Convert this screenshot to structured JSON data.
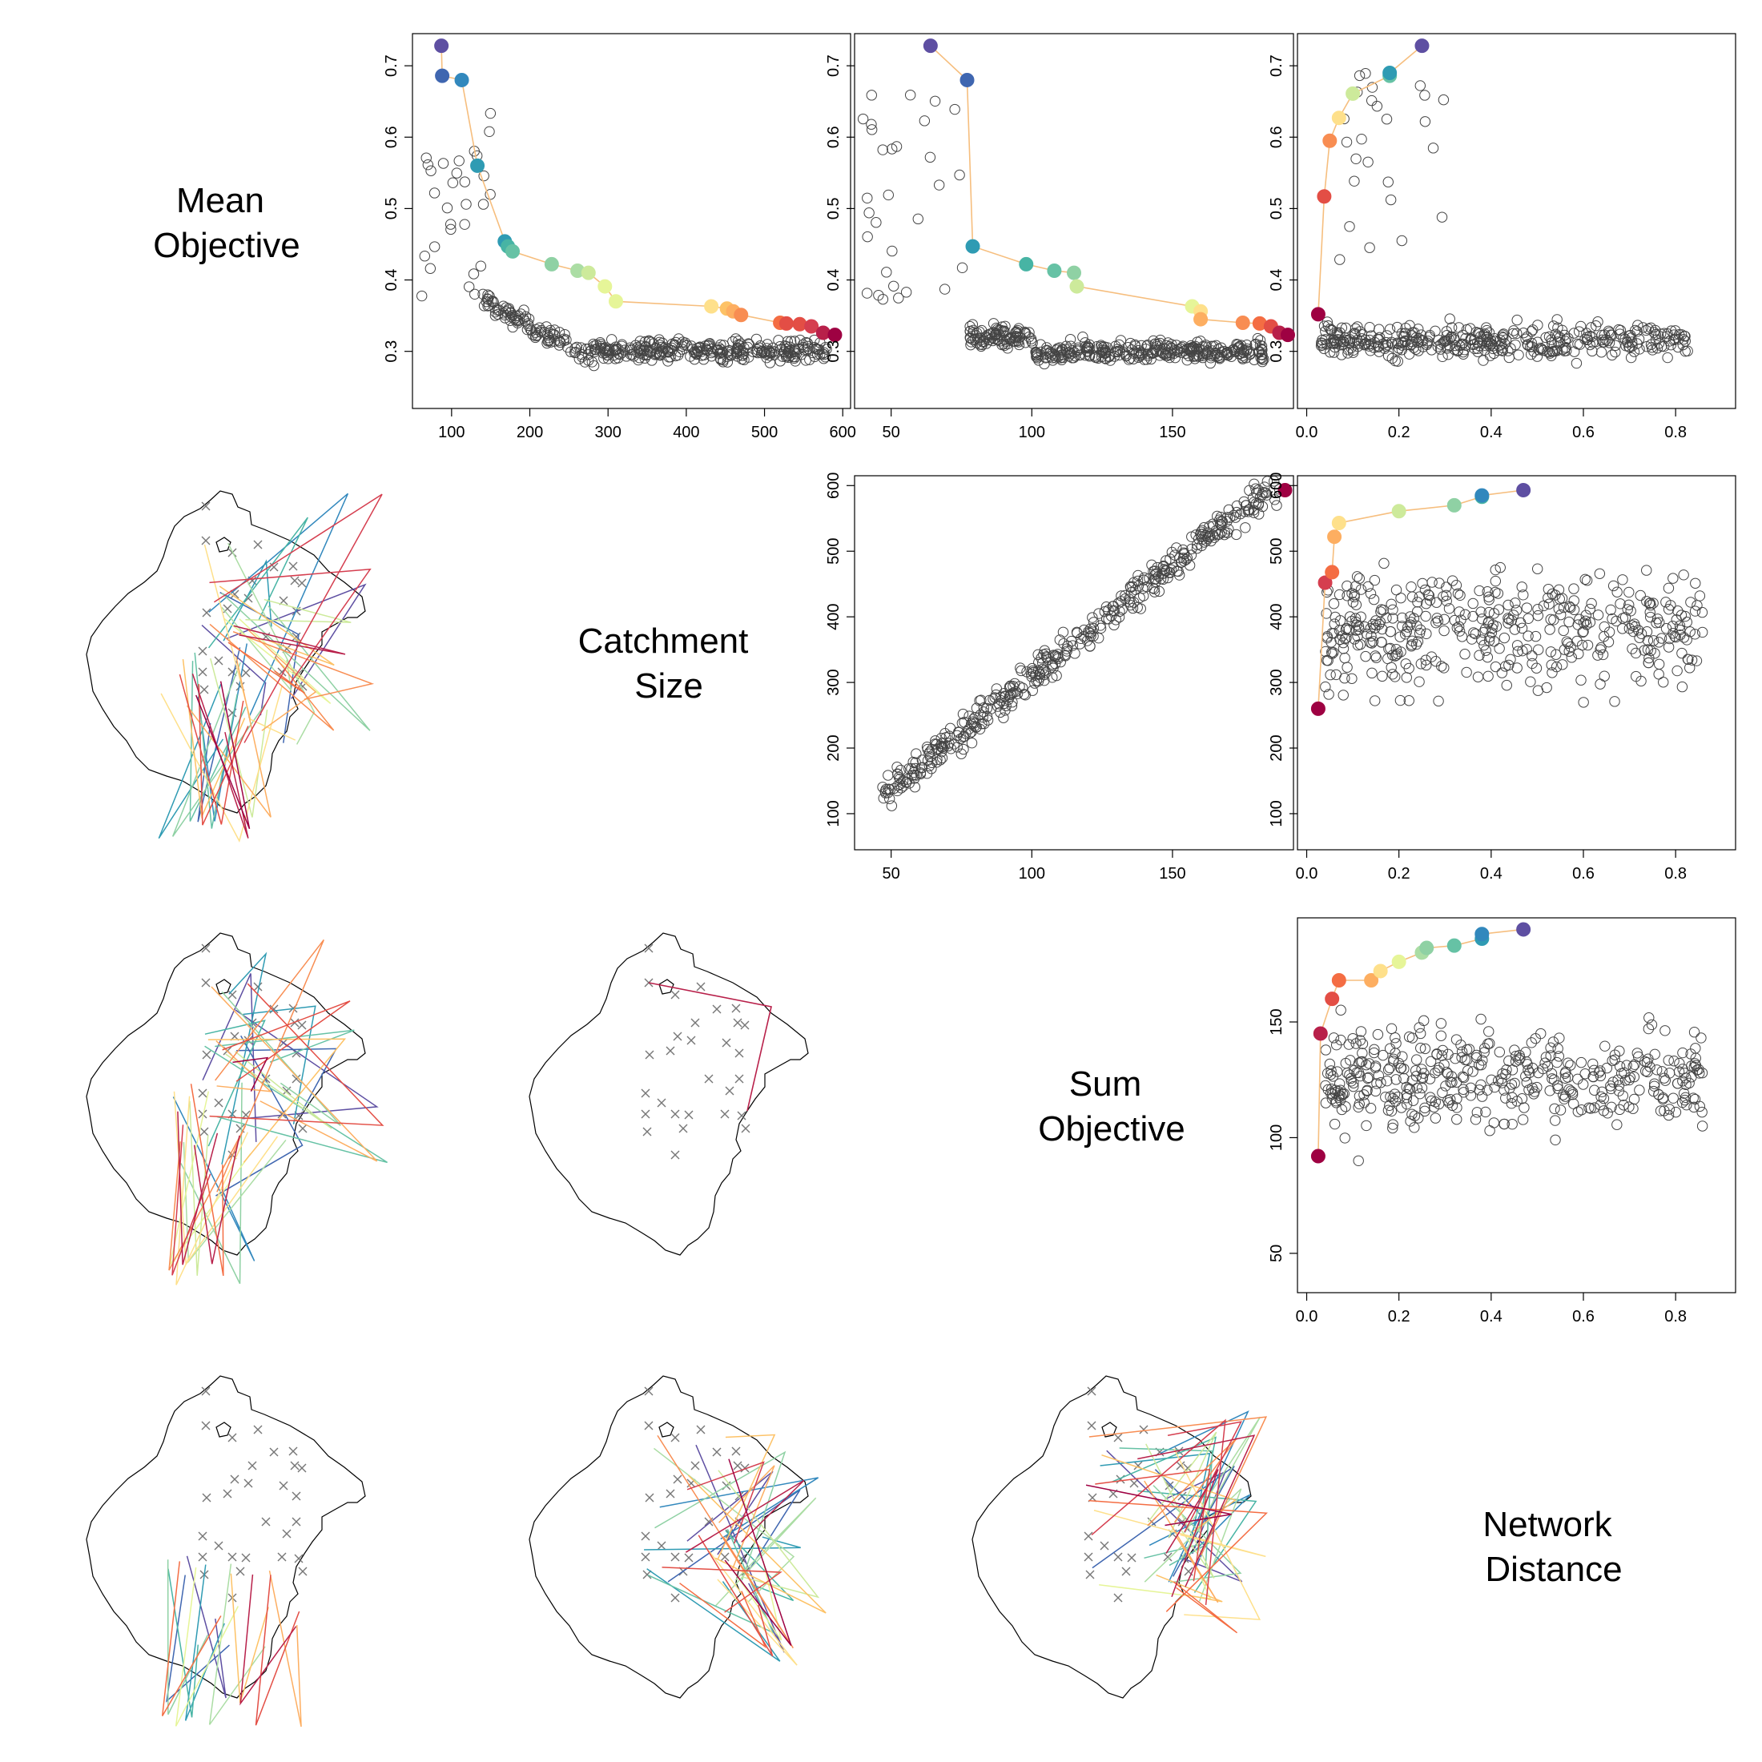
{
  "panel_labels": [
    [
      "Mean",
      "Objective"
    ],
    [
      "Catchment",
      "Size"
    ],
    [
      "Sum",
      "Objective"
    ],
    [
      "Network",
      "Distance"
    ]
  ],
  "palette": [
    "#5e4fa2",
    "#3f66b0",
    "#3288bd",
    "#2f9bb3",
    "#47b4a4",
    "#66c2a5",
    "#8fd1a4",
    "#abdda4",
    "#cdea9b",
    "#e6f598",
    "#fee08b",
    "#fdc266",
    "#fdae61",
    "#f88d52",
    "#f46d43",
    "#e34e45",
    "#d53e4f",
    "#b8204a",
    "#9e0142"
  ],
  "front_line_color": "#f6be7e",
  "chart_data": [
    {
      "id": "mean-vs-catchment",
      "type": "scatter",
      "xlabel": "",
      "ylabel": "",
      "xlim": [
        50,
        610
      ],
      "ylim": [
        0.22,
        0.745
      ],
      "xticks": [
        100,
        200,
        300,
        400,
        500,
        600
      ],
      "yticks": [
        0.3,
        0.4,
        0.5,
        0.6,
        0.7
      ],
      "grid": false,
      "pareto_front": [
        [
          87,
          0.728
        ],
        [
          88,
          0.686
        ],
        [
          113,
          0.68
        ],
        [
          133,
          0.56
        ],
        [
          168,
          0.454
        ],
        [
          172,
          0.447
        ],
        [
          178,
          0.44
        ],
        [
          228,
          0.422
        ],
        [
          261,
          0.413
        ],
        [
          275,
          0.41
        ],
        [
          296,
          0.391
        ],
        [
          310,
          0.37
        ],
        [
          432,
          0.363
        ],
        [
          452,
          0.36
        ],
        [
          460,
          0.356
        ],
        [
          470,
          0.351
        ],
        [
          520,
          0.34
        ],
        [
          528,
          0.339
        ],
        [
          545,
          0.338
        ],
        [
          560,
          0.335
        ],
        [
          575,
          0.326
        ],
        [
          590,
          0.323
        ]
      ],
      "cloud_seed": 11,
      "cloud_count": 420
    },
    {
      "id": "mean-vs-sum",
      "type": "scatter",
      "xlabel": "",
      "ylabel": "",
      "xlim": [
        37,
        193
      ],
      "ylim": [
        0.22,
        0.745
      ],
      "xticks": [
        50,
        100,
        150
      ],
      "yticks": [
        0.3,
        0.4,
        0.5,
        0.6,
        0.7
      ],
      "grid": false,
      "pareto_front": [
        [
          64,
          0.728
        ],
        [
          77,
          0.68
        ],
        [
          79,
          0.447
        ],
        [
          98,
          0.422
        ],
        [
          108,
          0.413
        ],
        [
          115,
          0.41
        ],
        [
          116,
          0.391
        ],
        [
          157,
          0.363
        ],
        [
          160,
          0.356
        ],
        [
          160,
          0.345
        ],
        [
          175,
          0.34
        ],
        [
          181,
          0.339
        ],
        [
          185,
          0.335
        ],
        [
          188,
          0.326
        ],
        [
          191,
          0.323
        ]
      ],
      "cloud_seed": 23,
      "cloud_count": 420
    },
    {
      "id": "mean-vs-network",
      "type": "scatter",
      "xlabel": "",
      "ylabel": "",
      "xlim": [
        -0.02,
        0.93
      ],
      "ylim": [
        0.22,
        0.745
      ],
      "xticks": [
        0.0,
        0.2,
        0.4,
        0.6,
        0.8
      ],
      "yticks": [
        0.3,
        0.4,
        0.5,
        0.6,
        0.7
      ],
      "grid": false,
      "pareto_front": [
        [
          0.025,
          0.352
        ],
        [
          0.038,
          0.517
        ],
        [
          0.05,
          0.595
        ],
        [
          0.07,
          0.627
        ],
        [
          0.1,
          0.661
        ],
        [
          0.18,
          0.686
        ],
        [
          0.18,
          0.69
        ],
        [
          0.25,
          0.728
        ]
      ],
      "cloud_seed": 37,
      "cloud_count": 420
    },
    {
      "id": "catchment-vs-sum",
      "type": "scatter",
      "xlabel": "",
      "ylabel": "",
      "xlim": [
        37,
        193
      ],
      "ylim": [
        45,
        615
      ],
      "xticks": [
        50,
        100,
        150
      ],
      "yticks": [
        100,
        200,
        300,
        400,
        500,
        600
      ],
      "grid": false,
      "pareto_front": [
        [
          190,
          593
        ]
      ],
      "cloud_seed": 53,
      "cloud_count": 420
    },
    {
      "id": "catchment-vs-network",
      "type": "scatter",
      "xlabel": "",
      "ylabel": "",
      "xlim": [
        -0.02,
        0.93
      ],
      "ylim": [
        45,
        615
      ],
      "xticks": [
        0.0,
        0.2,
        0.4,
        0.6,
        0.8
      ],
      "yticks": [
        100,
        200,
        300,
        400,
        500,
        600
      ],
      "grid": false,
      "pareto_front": [
        [
          0.025,
          260
        ],
        [
          0.04,
          452
        ],
        [
          0.055,
          468
        ],
        [
          0.06,
          522
        ],
        [
          0.07,
          543
        ],
        [
          0.2,
          561
        ],
        [
          0.32,
          570
        ],
        [
          0.38,
          583
        ],
        [
          0.38,
          585
        ],
        [
          0.47,
          593
        ]
      ],
      "cloud_seed": 71,
      "cloud_count": 420
    },
    {
      "id": "sum-vs-network",
      "type": "scatter",
      "xlabel": "",
      "ylabel": "",
      "xlim": [
        -0.02,
        0.93
      ],
      "ylim": [
        33,
        195
      ],
      "xticks": [
        0.0,
        0.2,
        0.4,
        0.6,
        0.8
      ],
      "yticks": [
        50,
        100,
        150
      ],
      "grid": false,
      "pareto_front": [
        [
          0.025,
          92
        ],
        [
          0.03,
          145
        ],
        [
          0.055,
          160
        ],
        [
          0.07,
          168
        ],
        [
          0.14,
          168
        ],
        [
          0.16,
          172
        ],
        [
          0.2,
          176
        ],
        [
          0.25,
          180
        ],
        [
          0.26,
          182
        ],
        [
          0.32,
          183
        ],
        [
          0.38,
          186
        ],
        [
          0.38,
          188
        ],
        [
          0.47,
          190
        ]
      ],
      "cloud_seed": 97,
      "cloud_count": 420
    }
  ],
  "maps": {
    "map-r1c0": {
      "seed": 3,
      "lines": 34,
      "spread": "broad"
    },
    "map-r2c0": {
      "seed": 5,
      "lines": 30,
      "spread": "broad"
    },
    "map-r2c1": {
      "seed": 7,
      "lines": 1,
      "spread": "single"
    },
    "map-r3c0": {
      "seed": 9,
      "lines": 12,
      "spread": "south"
    },
    "map-r3c1": {
      "seed": 13,
      "lines": 24,
      "spread": "east"
    },
    "map-r3c2": {
      "seed": 17,
      "lines": 32,
      "spread": "east"
    }
  }
}
